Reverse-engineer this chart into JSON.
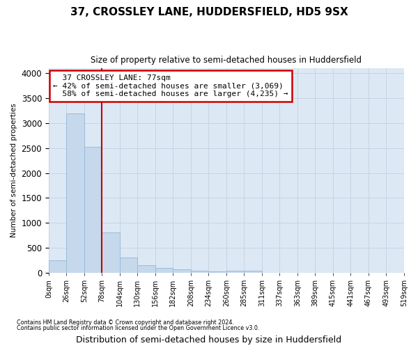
{
  "title1": "37, CROSSLEY LANE, HUDDERSFIELD, HD5 9SX",
  "title2": "Size of property relative to semi-detached houses in Huddersfield",
  "xlabel": "Distribution of semi-detached houses by size in Huddersfield",
  "ylabel": "Number of semi-detached properties",
  "footer1": "Contains HM Land Registry data © Crown copyright and database right 2024.",
  "footer2": "Contains public sector information licensed under the Open Government Licence v3.0.",
  "bin_labels": [
    "0sqm",
    "26sqm",
    "52sqm",
    "78sqm",
    "104sqm",
    "130sqm",
    "156sqm",
    "182sqm",
    "208sqm",
    "234sqm",
    "260sqm",
    "285sqm",
    "311sqm",
    "337sqm",
    "363sqm",
    "389sqm",
    "415sqm",
    "441sqm",
    "467sqm",
    "493sqm",
    "519sqm"
  ],
  "bar_values": [
    250,
    3200,
    2530,
    800,
    300,
    155,
    90,
    60,
    35,
    25,
    30,
    30,
    0,
    0,
    0,
    0,
    0,
    0,
    0,
    0
  ],
  "bar_color": "#c5d8ec",
  "bar_edge_color": "#9bbcd8",
  "vline_x_bin": 3,
  "vline_color": "#cc0000",
  "property_label": "37 CROSSLEY LANE: 77sqm",
  "pct_smaller": 42,
  "count_smaller": 3069,
  "pct_larger": 58,
  "count_larger": 4235,
  "box_edge_color": "#cc0000",
  "ylim_max": 4100,
  "yticks": [
    0,
    500,
    1000,
    1500,
    2000,
    2500,
    3000,
    3500,
    4000
  ],
  "grid_color": "#c8d4e4",
  "bg_color": "#dce8f4",
  "fig_bg": "#ffffff"
}
